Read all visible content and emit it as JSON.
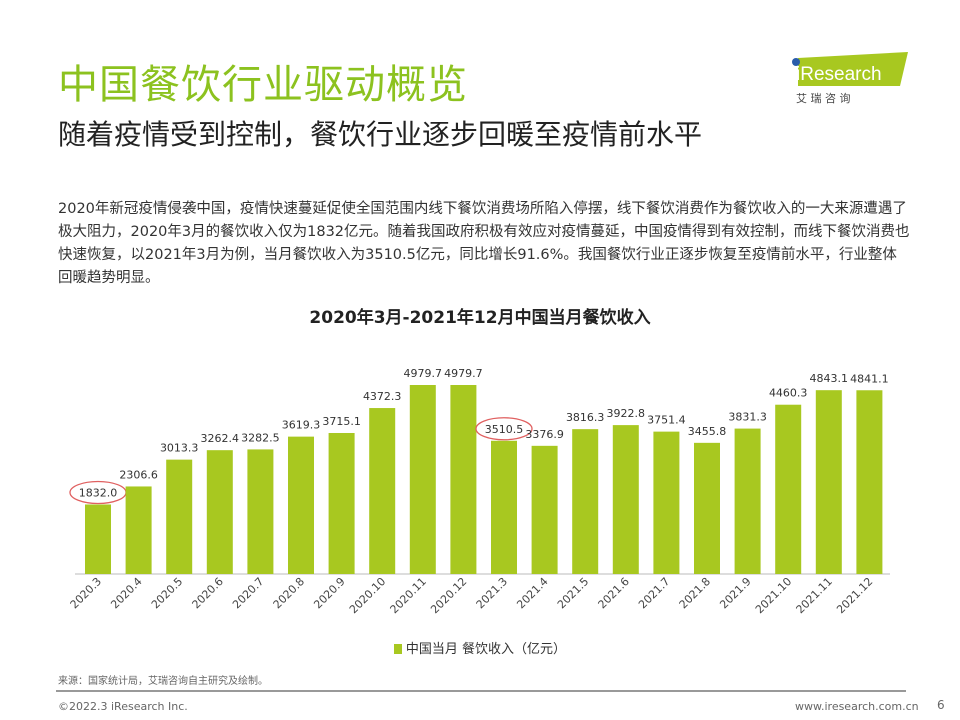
{
  "header": {
    "title": "中国餐饮行业驱动概览",
    "subtitle": "随着疫情受到控制，餐饮行业逐步回暖至疫情前水平",
    "body": "2020年新冠疫情侵袭中国，疫情快速蔓延促使全国范围内线下餐饮消费场所陷入停摆，线下餐饮消费作为餐饮收入的一大来源遭遇了极大阻力，2020年3月的餐饮收入仅为1832亿元。随着我国政府积极有效应对疫情蔓延，中国疫情得到有效控制，而线下餐饮消费也快速恢复，以2021年3月为例，当月餐饮收入为3510.5亿元，同比增长91.6%。我国餐饮行业正逐步恢复至疫情前水平，行业整体回暖趋势明显。"
  },
  "logo": {
    "text": "iResearch",
    "cn": "艾 瑞 咨 询"
  },
  "colors": {
    "accent": "#8cc21f",
    "bar": "#a8c820",
    "circle": "#e06060"
  },
  "chart_data": {
    "type": "bar",
    "title": "2020年3月-2021年12月中国当月餐饮收入",
    "categories": [
      "2020.3",
      "2020.4",
      "2020.5",
      "2020.6",
      "2020.7",
      "2020.8",
      "2020.9",
      "2020.10",
      "2020.11",
      "2020.12",
      "2021.3",
      "2021.4",
      "2021.5",
      "2021.6",
      "2021.7",
      "2021.8",
      "2021.9",
      "2021.10",
      "2021.11",
      "2021.12"
    ],
    "values": [
      1832.0,
      2306.6,
      3013.3,
      3262.4,
      3282.5,
      3619.3,
      3715.1,
      4372.3,
      4979.7,
      4979.7,
      3510.5,
      3376.9,
      3816.3,
      3922.8,
      3751.4,
      3455.8,
      3831.3,
      4460.3,
      4843.1,
      4841.1
    ],
    "highlighted": [
      "2020.3",
      "2021.3"
    ],
    "legend": "中国当月 餐饮收入（亿元）",
    "ylim": [
      0,
      5000
    ],
    "xlabel": "",
    "ylabel": ""
  },
  "footer": {
    "source": "来源：国家统计局，艾瑞咨询自主研究及绘制。",
    "copyright": "©2022.3 iResearch Inc.",
    "url": "www.iresearch.com.cn",
    "page": "6"
  }
}
